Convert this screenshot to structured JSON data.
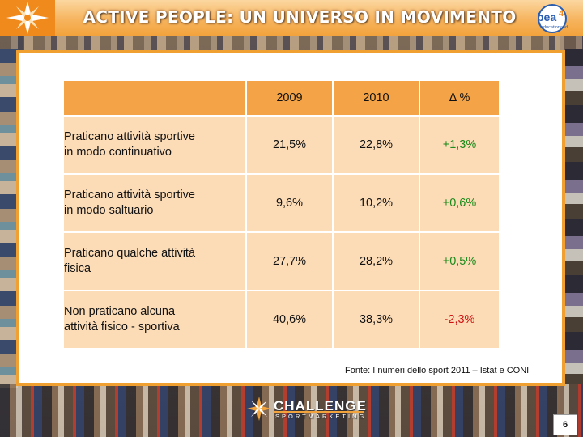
{
  "header": {
    "title": "ACTIVE PEOPLE: UN UNIVERSO IN MOVIMENTO",
    "partner_logo_text": "bea",
    "partner_logo_number": "4",
    "partner_logo_sub": "educationand"
  },
  "table": {
    "columns": [
      "2009",
      "2010",
      "Δ %"
    ],
    "rows": [
      {
        "label_line1": "Praticano attività sportive",
        "label_line2": "in modo continuativo",
        "v2009": "21,5%",
        "v2010": "22,8%",
        "delta": "+1,3%"
      },
      {
        "label_line1": "Praticano attività sportive",
        "label_line2": "in modo saltuario",
        "v2009": "9,6%",
        "v2010": "10,2%",
        "delta": "+0,6%"
      },
      {
        "label_line1": "Praticano qualche attività",
        "label_line2": "fisica",
        "v2009": "27,7%",
        "v2010": "28,2%",
        "delta": "+0,5%"
      },
      {
        "label_line1": "Non praticano alcuna",
        "label_line2": "attività fisico - sportiva",
        "v2009": "40,6%",
        "v2010": "38,3%",
        "delta": "-2,3%"
      }
    ]
  },
  "source": "Fonte: I numeri dello sport 2011 – Istat e CONI",
  "footer": {
    "brand": "CHALLENGE",
    "brand_sub": "SPORTMARKETING",
    "page_number": "6"
  },
  "colors": {
    "accent": "#f4a446",
    "cell": "#fcdcb7",
    "positive": "#1a8a1a",
    "negative": "#d01010"
  },
  "icons": [
    "sun-star-logo-icon",
    "bea-logo-icon",
    "challenge-star-logo-icon"
  ]
}
